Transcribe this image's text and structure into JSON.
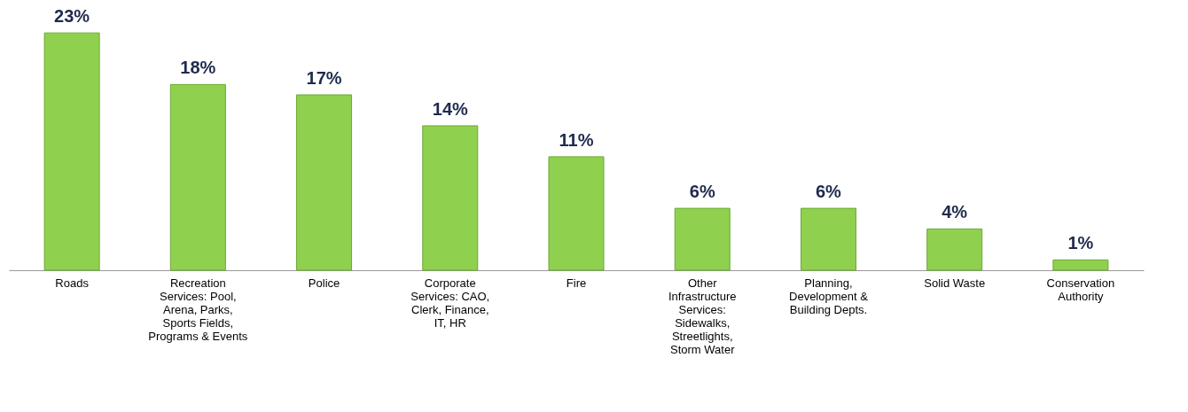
{
  "chart_data": {
    "type": "bar",
    "categories": [
      "Roads",
      "Recreation Services: Pool, Arena, Parks, Sports Fields, Programs & Events",
      "Police",
      "Corporate Services: CAO, Clerk, Finance, IT, HR",
      "Fire",
      "Other Infrastructure Services: Sidewalks, Streetlights, Storm Water",
      "Planning, Development & Building Depts.",
      "Solid Waste",
      "Conservation Authority"
    ],
    "values": [
      23,
      18,
      17,
      14,
      11,
      6,
      6,
      4,
      1
    ],
    "value_labels": [
      "23%",
      "18%",
      "17%",
      "14%",
      "11%",
      "6%",
      "6%",
      "4%",
      "1%"
    ],
    "color": "#8fd14f",
    "grid": false
  }
}
